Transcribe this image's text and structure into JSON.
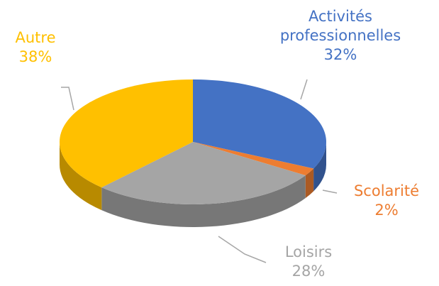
{
  "chart_data": {
    "type": "pie3d",
    "categories": [
      "Activités professionnelles",
      "Scolarité",
      "Loisirs",
      "Autre"
    ],
    "values": [
      32,
      2,
      28,
      38
    ],
    "value_labels": [
      "32%",
      "2%",
      "28%",
      "38%"
    ],
    "colors": [
      "#4472c4",
      "#ed7d31",
      "#a5a5a5",
      "#ffc000"
    ]
  }
}
